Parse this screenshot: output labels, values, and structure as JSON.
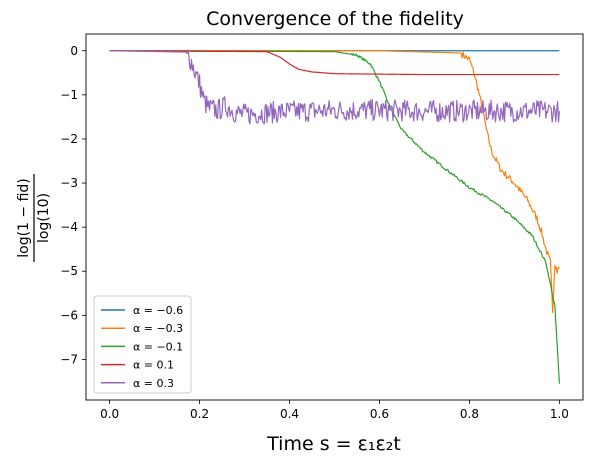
{
  "chart_data": {
    "type": "line",
    "title": "Convergence of the fidelity",
    "xlabel": "Time s = ε₁ε₂t",
    "ylabel": {
      "numerator": "log(1 − fid)",
      "denominator": "log(10)"
    },
    "xlim": [
      -0.0525,
      1.0525
    ],
    "ylim": [
      -7.92,
      0.38
    ],
    "xticks": [
      0.0,
      0.2,
      0.4,
      0.6,
      0.8,
      1.0
    ],
    "xtick_labels": [
      "0.0",
      "0.2",
      "0.4",
      "0.6",
      "0.8",
      "1.0"
    ],
    "yticks": [
      0,
      -1,
      -2,
      -3,
      -4,
      -5,
      -6,
      -7
    ],
    "ytick_labels": [
      "0",
      "−1",
      "−2",
      "−3",
      "−4",
      "−5",
      "−6",
      "−7"
    ],
    "grid": false,
    "legend_position": "lower-left",
    "series": [
      {
        "name": "α = −0.6",
        "color": "#1f77b4",
        "x": [
          0.0,
          0.2,
          0.4,
          0.6,
          0.8,
          1.0
        ],
        "y": [
          0,
          0,
          0,
          0,
          0,
          0
        ]
      },
      {
        "name": "α = −0.3",
        "color": "#ff7f0e",
        "x": [
          0.0,
          0.6,
          0.78,
          0.8,
          0.81,
          0.82,
          0.83,
          0.84,
          0.85,
          0.87,
          0.9,
          0.93,
          0.95,
          0.96,
          0.97,
          0.98,
          0.985,
          0.99,
          0.995,
          1.0
        ],
        "y": [
          0,
          0,
          -0.05,
          -0.2,
          -0.5,
          -0.9,
          -1.4,
          -1.9,
          -2.3,
          -2.7,
          -3.0,
          -3.4,
          -3.8,
          -4.1,
          -4.5,
          -4.8,
          -5.9,
          -4.8,
          -5.0,
          -4.9
        ],
        "noise": 0.08
      },
      {
        "name": "α = −0.1",
        "color": "#2ca02c",
        "x": [
          0.0,
          0.5,
          0.55,
          0.58,
          0.6,
          0.62,
          0.65,
          0.7,
          0.75,
          0.8,
          0.85,
          0.9,
          0.94,
          0.97,
          0.99,
          1.0
        ],
        "y": [
          0,
          -0.02,
          -0.1,
          -0.3,
          -0.7,
          -1.2,
          -1.8,
          -2.3,
          -2.7,
          -3.1,
          -3.4,
          -3.8,
          -4.2,
          -4.8,
          -5.8,
          -7.55
        ],
        "noise": 0.03
      },
      {
        "name": "α = 0.1",
        "color": "#d62728",
        "x": [
          0.0,
          0.35,
          0.38,
          0.4,
          0.42,
          0.45,
          0.5,
          0.6,
          0.7,
          0.8,
          1.0
        ],
        "y": [
          0,
          -0.02,
          -0.15,
          -0.3,
          -0.42,
          -0.48,
          -0.52,
          -0.53,
          -0.54,
          -0.54,
          -0.54
        ]
      },
      {
        "name": "α = 0.3",
        "color": "#9467bd",
        "x": [
          0.0,
          0.17,
          0.18,
          0.2,
          0.21,
          0.22,
          0.24,
          0.26,
          0.28,
          0.3,
          0.35,
          0.4,
          0.5,
          0.6,
          0.7,
          0.8,
          1.0
        ],
        "y": [
          0,
          -0.03,
          -0.2,
          -0.75,
          -1.15,
          -1.3,
          -1.35,
          -1.25,
          -1.4,
          -1.45,
          -1.4,
          -1.38,
          -1.35,
          -1.35,
          -1.37,
          -1.37,
          -1.37
        ],
        "noise": 0.25
      }
    ]
  }
}
